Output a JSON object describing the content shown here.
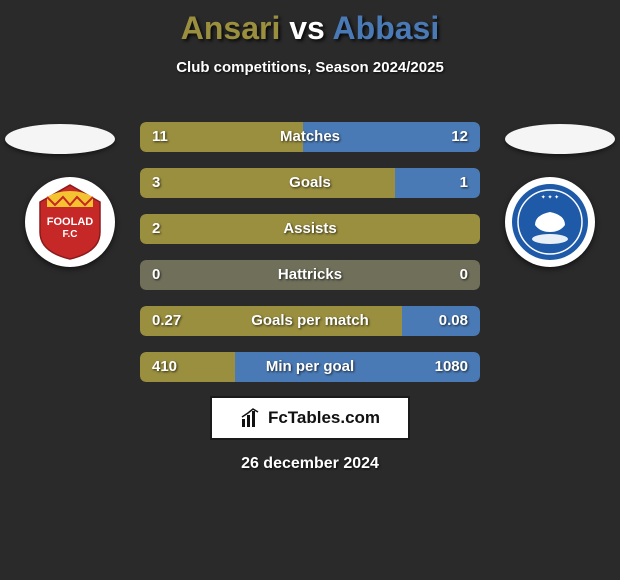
{
  "title": {
    "player1": "Ansari",
    "vs": "vs",
    "player2": "Abbasi",
    "player1_color": "#9a8f3f",
    "player2_color": "#4a7ab5"
  },
  "subtitle": "Club competitions, Season 2024/2025",
  "background_color": "#2a2a2a",
  "flag_ellipse_color": "#f5f5f5",
  "club_badges": {
    "left": {
      "bg": "#ffffff",
      "primary": "#c62828",
      "secondary": "#f4c430",
      "label": "FOOLAD"
    },
    "right": {
      "bg": "#ffffff",
      "primary": "#1e5aa8",
      "secondary": "#ffffff"
    }
  },
  "stats": {
    "bar_color_left": "#9a8f3f",
    "bar_color_right": "#4a7ab5",
    "bar_bg_equal": "#6f6f5a",
    "rows": [
      {
        "label": "Matches",
        "left_val": "11",
        "right_val": "12",
        "left_pct": 48,
        "right_pct": 52
      },
      {
        "label": "Goals",
        "left_val": "3",
        "right_val": "1",
        "left_pct": 75,
        "right_pct": 25
      },
      {
        "label": "Assists",
        "left_val": "2",
        "right_val": "",
        "left_pct": 100,
        "right_pct": 0
      },
      {
        "label": "Hattricks",
        "left_val": "0",
        "right_val": "0",
        "left_pct": 50,
        "right_pct": 50,
        "equal": true
      },
      {
        "label": "Goals per match",
        "left_val": "0.27",
        "right_val": "0.08",
        "left_pct": 77,
        "right_pct": 23
      },
      {
        "label": "Min per goal",
        "left_val": "410",
        "right_val": "1080",
        "left_pct": 28,
        "right_pct": 72,
        "inverted": true
      }
    ]
  },
  "brand": {
    "icon": "chart-icon",
    "text": "FcTables.com"
  },
  "date": "26 december 2024"
}
